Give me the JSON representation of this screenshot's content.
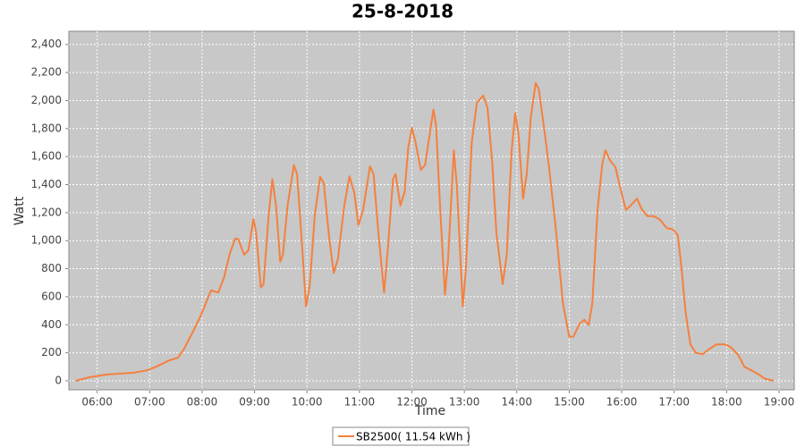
{
  "chart_data": {
    "type": "line",
    "title": "25-8-2018",
    "x_label": "Time",
    "y_label": "Watt",
    "x": [
      5.59,
      5.85,
      6.19,
      6.69,
      6.95,
      7.12,
      7.37,
      7.54,
      7.66,
      7.85,
      7.98,
      8.17,
      8.31,
      8.42,
      8.53,
      8.63,
      8.69,
      8.8,
      8.88,
      8.98,
      9.03,
      9.12,
      9.17,
      9.27,
      9.34,
      9.41,
      9.49,
      9.54,
      9.63,
      9.75,
      9.81,
      9.9,
      9.98,
      10.05,
      10.15,
      10.25,
      10.32,
      10.42,
      10.51,
      10.59,
      10.71,
      10.81,
      10.9,
      10.98,
      11.07,
      11.2,
      11.27,
      11.36,
      11.47,
      11.54,
      11.64,
      11.69,
      11.78,
      11.86,
      11.93,
      12.0,
      12.07,
      12.17,
      12.25,
      12.34,
      12.41,
      12.46,
      12.54,
      12.63,
      12.69,
      12.8,
      12.86,
      12.97,
      13.03,
      13.14,
      13.24,
      13.36,
      13.44,
      13.53,
      13.61,
      13.73,
      13.81,
      13.9,
      13.97,
      14.03,
      14.12,
      14.19,
      14.27,
      14.36,
      14.42,
      14.49,
      14.61,
      14.75,
      14.88,
      15.0,
      15.08,
      15.2,
      15.29,
      15.37,
      15.44,
      15.54,
      15.63,
      15.69,
      15.78,
      15.88,
      15.97,
      16.08,
      16.17,
      16.29,
      16.39,
      16.49,
      16.61,
      16.73,
      16.86,
      16.98,
      17.07,
      17.14,
      17.22,
      17.31,
      17.41,
      17.54,
      17.68,
      17.81,
      17.97,
      18.08,
      18.22,
      18.34,
      18.47,
      18.59,
      18.73,
      18.9
    ],
    "series": [
      {
        "name": "SB2500( 11.54 kWh )",
        "color": "#f5803e",
        "values": [
          0,
          25,
          45,
          57,
          75,
          100,
          145,
          165,
          230,
          370,
          470,
          645,
          630,
          740,
          910,
          1015,
          1010,
          900,
          930,
          1155,
          1060,
          665,
          690,
          1185,
          1440,
          1250,
          850,
          900,
          1250,
          1540,
          1475,
          995,
          530,
          675,
          1185,
          1455,
          1410,
          1030,
          770,
          870,
          1250,
          1460,
          1345,
          1110,
          1220,
          1530,
          1475,
          1060,
          630,
          930,
          1440,
          1475,
          1250,
          1345,
          1665,
          1805,
          1700,
          1505,
          1540,
          1760,
          1935,
          1825,
          1220,
          615,
          870,
          1645,
          1380,
          530,
          805,
          1700,
          1985,
          2035,
          1950,
          1570,
          1060,
          690,
          900,
          1635,
          1910,
          1760,
          1300,
          1475,
          1890,
          2125,
          2080,
          1890,
          1540,
          1060,
          550,
          315,
          315,
          410,
          435,
          400,
          550,
          1220,
          1550,
          1645,
          1570,
          1525,
          1380,
          1220,
          1250,
          1300,
          1220,
          1175,
          1175,
          1150,
          1090,
          1080,
          1040,
          805,
          485,
          260,
          200,
          190,
          230,
          260,
          260,
          240,
          185,
          100,
          75,
          50,
          15,
          0
        ]
      }
    ],
    "xlim": [
      5.46,
      19.29
    ],
    "xticks": [
      {
        "value": 6,
        "label": "06:00"
      },
      {
        "value": 7,
        "label": "07:00"
      },
      {
        "value": 8,
        "label": "08:00"
      },
      {
        "value": 9,
        "label": "09:00"
      },
      {
        "value": 10,
        "label": "10:00"
      },
      {
        "value": 11,
        "label": "11:00"
      },
      {
        "value": 12,
        "label": "12:00"
      },
      {
        "value": 13,
        "label": "13:00"
      },
      {
        "value": 14,
        "label": "14:00"
      },
      {
        "value": 15,
        "label": "15:00"
      },
      {
        "value": 16,
        "label": "16:00"
      },
      {
        "value": 17,
        "label": "17:00"
      },
      {
        "value": 18,
        "label": "18:00"
      },
      {
        "value": 19,
        "label": "19:00"
      }
    ],
    "ylim": [
      -64,
      2494
    ],
    "yticks": [
      0,
      200,
      400,
      600,
      800,
      {
        "value": 1000,
        "label": "1,000"
      },
      {
        "value": 1200,
        "label": "1,200"
      },
      {
        "value": 1400,
        "label": "1,400"
      },
      {
        "value": 1600,
        "label": "1,600"
      },
      {
        "value": 1800,
        "label": "1,800"
      },
      {
        "value": 2000,
        "label": "2,000"
      },
      {
        "value": 2200,
        "label": "2,200"
      },
      {
        "value": 2400,
        "label": "2,400"
      }
    ],
    "grid": true
  }
}
